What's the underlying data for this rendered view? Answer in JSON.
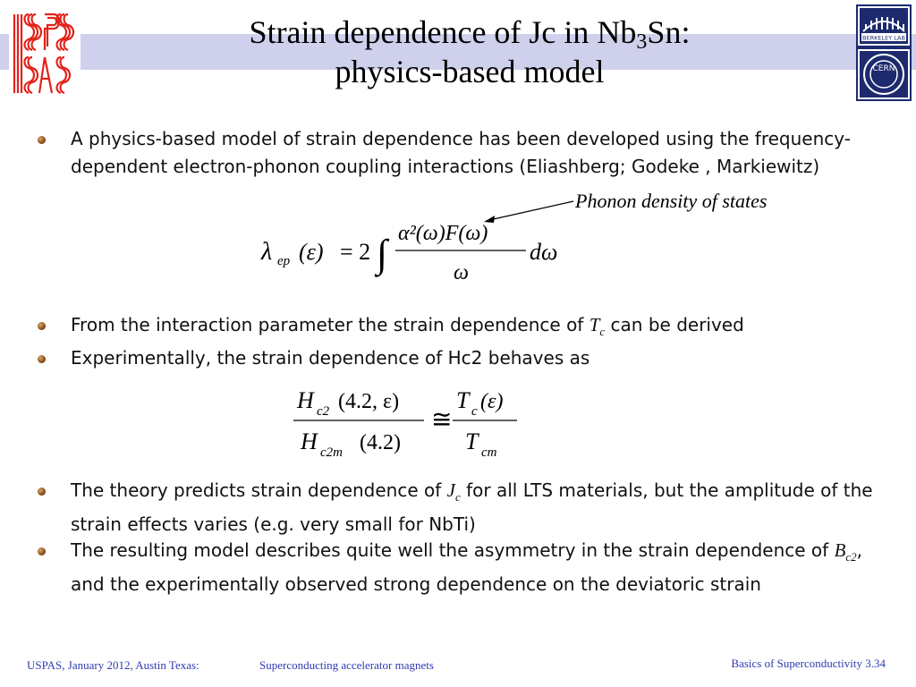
{
  "slide": {
    "title_line1_pre": "Strain dependence of Jc in Nb",
    "title_line1_sub": "3",
    "title_line1_post": "Sn:",
    "title_line2": "physics-based model",
    "logos": {
      "left": "USPAS",
      "right_top": "BERKELEY LAB",
      "right_bottom": "CERN"
    },
    "colors": {
      "band": "#cfd0ec",
      "footer_text": "#2f3bb0",
      "logo_red": "#e2231a",
      "logo_navy": "#1d2a6e"
    }
  },
  "bullets": {
    "b1": "A physics-based model of strain dependence has been developed using the frequency-dependent electron-phonon coupling interactions (Eliashberg; Godeke , Markiewitz)",
    "b2_pre": "From the interaction parameter the strain dependence of ",
    "b2_var": "T",
    "b2_sub": "c",
    "b2_post": " can be derived",
    "b3": "Experimentally, the strain dependence of Hc2 behaves as",
    "b4_pre": "The theory predicts strain dependence of ",
    "b4_var": "J",
    "b4_sub": "c",
    "b4_post": " for all LTS materials, but the amplitude of the strain effects varies (e.g. very small for NbTi)",
    "b5_pre": "The resulting model describes quite well the asymmetry in the strain dependence of ",
    "b5_var": "B",
    "b5_sub": "c2",
    "b5_post": ", and the experimentally observed strong dependence on the deviatoric strain"
  },
  "annotation": {
    "phonon": "Phonon density of states"
  },
  "equation1": {
    "lambda": "λ",
    "lambda_sub": "ep",
    "arg": "(ε)",
    "equals": "= 2",
    "integral": "∫",
    "numerator": "α²(ω)F(ω)",
    "denominator": "ω",
    "differential": "dω"
  },
  "equation2": {
    "num_left": "H",
    "num_left_sub": "c2",
    "num_left_arg": "(4.2, ε)",
    "den_left": "H",
    "den_left_sub": "c2m",
    "den_left_arg": "(4.2)",
    "approx": "≅",
    "num_right": "T",
    "num_right_sub": "c",
    "num_right_arg": "(ε)",
    "den_right": "T",
    "den_right_sub": "cm"
  },
  "footer": {
    "left": "USPAS, January 2012, Austin Texas:",
    "center": "Superconducting accelerator magnets",
    "right": "Basics of Superconductivity 3.34"
  }
}
